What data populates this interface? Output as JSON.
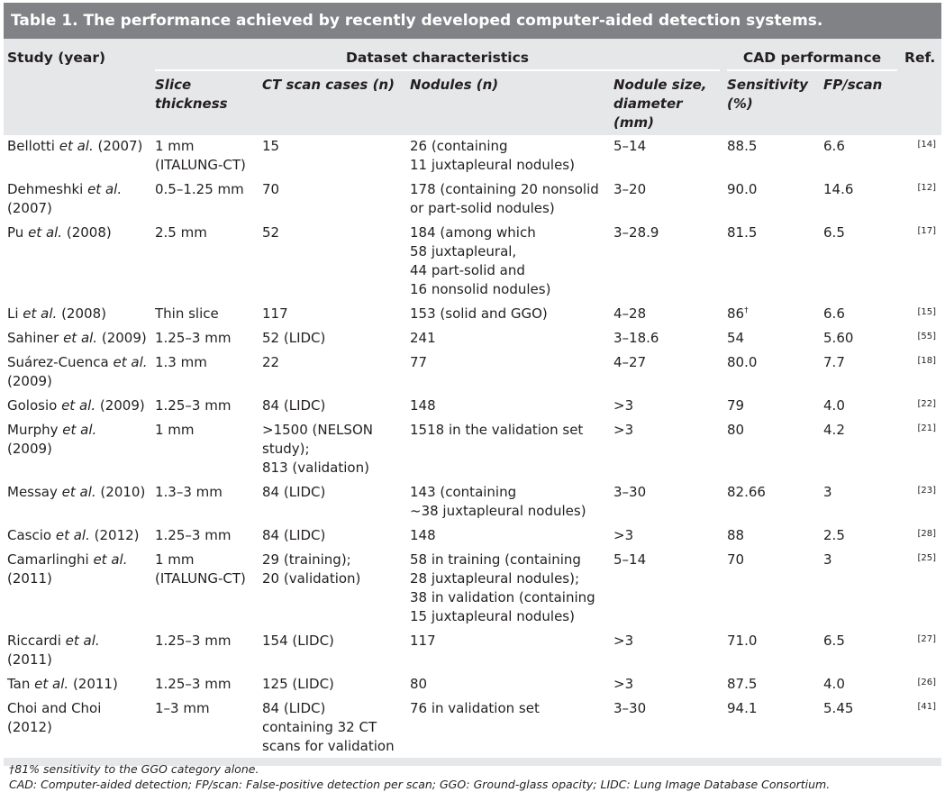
{
  "title": "Table 1. The performance achieved by recently developed computer-aided detection systems.",
  "header": {
    "study": "Study (year)",
    "dataset": "Dataset characteristics",
    "cad": "CAD performance",
    "ref": "Ref.",
    "slice": "Slice\nthickness",
    "ct": "CT scan cases (n)",
    "nodules": "Nodules (n)",
    "size": "Nodule size,\ndiameter\n(mm)",
    "sensitivity": "Sensitivity\n(%)",
    "fp": "FP/scan"
  },
  "rows": [
    {
      "author": "Bellotti",
      "etal": " et al.",
      "year": " (2007)",
      "slice": "1 mm\n(ITALUNG-CT)",
      "ct": "15",
      "nodules": "26 (containing\n11 juxtapleural nodules)",
      "size": "5–14",
      "sens": "88.5",
      "sens_mark": "",
      "fp": "6.6",
      "ref": "[14]"
    },
    {
      "author": "Dehmeshki",
      "etal": " et al.",
      "year": "\n(2007)",
      "slice": "0.5–1.25 mm",
      "ct": "70",
      "nodules": "178 (containing 20 nonsolid\nor part-solid nodules)",
      "size": "3–20",
      "sens": "90.0",
      "sens_mark": "",
      "fp": "14.6",
      "ref": "[12]"
    },
    {
      "author": "Pu",
      "etal": " et al.",
      "year": " (2008)",
      "slice": "2.5 mm",
      "ct": "52",
      "nodules": "184 (among which\n58 juxtapleural,\n44 part-solid and\n16 nonsolid nodules)",
      "size": "3–28.9",
      "sens": "81.5",
      "sens_mark": "",
      "fp": "6.5",
      "ref": "[17]"
    },
    {
      "author": "Li",
      "etal": " et al.",
      "year": " (2008)",
      "slice": "Thin slice",
      "ct": "117",
      "nodules": "153 (solid and GGO)",
      "size": "4–28",
      "sens": "86",
      "sens_mark": "†",
      "fp": "6.6",
      "ref": "[15]"
    },
    {
      "author": "Sahiner",
      "etal": " et al.",
      "year": " (2009)",
      "slice": "1.25–3 mm",
      "ct": "52 (LIDC)",
      "nodules": "241",
      "size": "3–18.6",
      "sens": "54",
      "sens_mark": "",
      "fp": "5.60",
      "ref": "[55]"
    },
    {
      "author": "Suárez-Cuenca",
      "etal": " et al.",
      "year": "\n(2009)",
      "slice": "1.3 mm",
      "ct": "22",
      "nodules": "77",
      "size": "4–27",
      "sens": "80.0",
      "sens_mark": "",
      "fp": "7.7",
      "ref": "[18]"
    },
    {
      "author": "Golosio",
      "etal": " et al.",
      "year": " (2009)",
      "slice": "1.25–3 mm",
      "ct": "84 (LIDC)",
      "nodules": "148",
      "size": ">3",
      "sens": "79",
      "sens_mark": "",
      "fp": "4.0",
      "ref": "[22]"
    },
    {
      "author": "Murphy",
      "etal": " et al.",
      "year": "\n(2009)",
      "slice": "1 mm",
      "ct": ">1500 (NELSON\nstudy);\n813 (validation)",
      "nodules": "1518 in the validation set",
      "size": ">3",
      "sens": "80",
      "sens_mark": "",
      "fp": "4.2",
      "ref": "[21]"
    },
    {
      "author": "Messay",
      "etal": " et al.",
      "year": " (2010)",
      "slice": "1.3–3 mm",
      "ct": "84 (LIDC)",
      "nodules": "143 (containing\n~38 juxtapleural nodules)",
      "size": "3–30",
      "sens": "82.66",
      "sens_mark": "",
      "fp": "3",
      "ref": "[23]"
    },
    {
      "author": "Cascio",
      "etal": " et al.",
      "year": " (2012)",
      "slice": "1.25–3 mm",
      "ct": "84 (LIDC)",
      "nodules": "148",
      "size": ">3",
      "sens": "88",
      "sens_mark": "",
      "fp": "2.5",
      "ref": "[28]"
    },
    {
      "author": "Camarlinghi",
      "etal": " et al.",
      "year": "\n(2011)",
      "slice": "1 mm\n(ITALUNG-CT)",
      "ct": "29 (training);\n20 (validation)",
      "nodules": "58 in training (containing\n28 juxtapleural nodules);\n38 in validation (containing\n15 juxtapleural nodules)",
      "size": "5–14",
      "sens": "70",
      "sens_mark": "",
      "fp": "3",
      "ref": "[25]"
    },
    {
      "author": "Riccardi",
      "etal": " et al.",
      "year": " (2011)",
      "slice": "1.25–3 mm",
      "ct": "154 (LIDC)",
      "nodules": "117",
      "size": ">3",
      "sens": "71.0",
      "sens_mark": "",
      "fp": "6.5",
      "ref": "[27]"
    },
    {
      "author": "Tan",
      "etal": " et al.",
      "year": " (2011)",
      "slice": "1.25–3 mm",
      "ct": "125 (LIDC)",
      "nodules": "80",
      "size": ">3",
      "sens": "87.5",
      "sens_mark": "",
      "fp": "4.0",
      "ref": "[26]"
    },
    {
      "author": "Choi and Choi",
      "etal": "",
      "year": "\n(2012)",
      "slice": "1–3 mm",
      "ct": "84 (LIDC)\ncontaining 32 CT\nscans for validation",
      "nodules": "76 in validation set",
      "size": "3–30",
      "sens": "94.1",
      "sens_mark": "",
      "fp": "5.45",
      "ref": "[41]"
    }
  ],
  "footnotes": {
    "dagger": "†81% sensitivity to the GGO category alone.",
    "abbr": "CAD: Computer-aided detection; FP/scan: False-positive detection per scan; GGO: Ground-glass opacity; LIDC: Lung Image Database Consortium."
  }
}
